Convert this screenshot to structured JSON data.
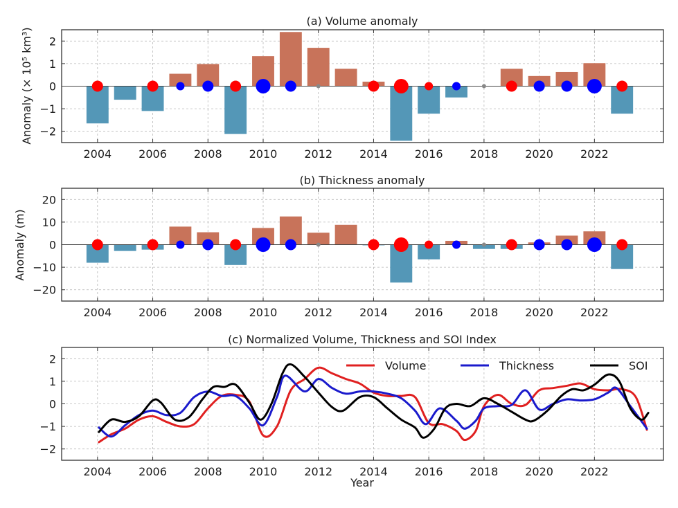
{
  "figure": {
    "panels": [
      {
        "title": "(a) Volume anomaly",
        "ylabel": "Anomaly (× 10⁵ km³)",
        "yticks": [
          "−2",
          "−1",
          "0",
          "1",
          "2"
        ]
      },
      {
        "title": "(b) Thickness anomaly",
        "ylabel": "Anomaly (m)",
        "yticks": [
          "−20",
          "−10",
          "0",
          "10",
          "20"
        ]
      },
      {
        "title": "(c) Normalized Volume, Thickness and SOI Index",
        "xlabel": "Year",
        "yticks": [
          "−2",
          "−1",
          "0",
          "1",
          "2"
        ]
      }
    ],
    "xticks": [
      "2004",
      "2006",
      "2008",
      "2010",
      "2012",
      "2014",
      "2016",
      "2018",
      "2020",
      "2022"
    ],
    "legend": [
      "Volume",
      "Thickness",
      "SOI"
    ]
  },
  "chart_data": [
    {
      "type": "bar",
      "title": "(a) Volume anomaly",
      "xlabel": "",
      "ylabel": "Anomaly (× 10^5 km^3)",
      "ylim": [
        -2.5,
        2.5
      ],
      "xlim": [
        2002.7,
        2024.5
      ],
      "yticks": [
        -2,
        -1,
        0,
        1,
        2
      ],
      "xticks": [
        2004,
        2006,
        2008,
        2010,
        2012,
        2014,
        2016,
        2018,
        2020,
        2022
      ],
      "grid": true,
      "categories": [
        2004,
        2005,
        2006,
        2007,
        2008,
        2009,
        2010,
        2011,
        2012,
        2013,
        2014,
        2015,
        2016,
        2017,
        2018,
        2019,
        2020,
        2021,
        2022,
        2023
      ],
      "values": [
        -1.65,
        -0.6,
        -1.1,
        0.55,
        0.98,
        -2.12,
        1.33,
        2.4,
        1.7,
        0.77,
        0.2,
        -2.42,
        -1.22,
        -0.5,
        0.0,
        0.77,
        0.45,
        0.63,
        1.02,
        -1.22
      ],
      "colors": {
        "positive": "#c8735a",
        "negative": "#5497b7"
      },
      "enso_markers": [
        {
          "year": 2004,
          "phase": "El Niño",
          "size": "medium"
        },
        {
          "year": 2006,
          "phase": "El Niño",
          "size": "medium"
        },
        {
          "year": 2007,
          "phase": "La Niña",
          "size": "small"
        },
        {
          "year": 2008,
          "phase": "La Niña",
          "size": "medium"
        },
        {
          "year": 2009,
          "phase": "El Niño",
          "size": "medium"
        },
        {
          "year": 2010,
          "phase": "La Niña",
          "size": "large"
        },
        {
          "year": 2011,
          "phase": "La Niña",
          "size": "medium"
        },
        {
          "year": 2012,
          "phase": "Neutral",
          "size": "tiny"
        },
        {
          "year": 2014,
          "phase": "El Niño",
          "size": "medium"
        },
        {
          "year": 2015,
          "phase": "El Niño",
          "size": "large"
        },
        {
          "year": 2016,
          "phase": "El Niño",
          "size": "small"
        },
        {
          "year": 2017,
          "phase": "La Niña",
          "size": "small"
        },
        {
          "year": 2018,
          "phase": "Neutral",
          "size": "tiny"
        },
        {
          "year": 2019,
          "phase": "El Niño",
          "size": "medium"
        },
        {
          "year": 2020,
          "phase": "La Niña",
          "size": "medium"
        },
        {
          "year": 2021,
          "phase": "La Niña",
          "size": "medium"
        },
        {
          "year": 2022,
          "phase": "La Niña",
          "size": "large"
        },
        {
          "year": 2023,
          "phase": "El Niño",
          "size": "medium"
        }
      ],
      "marker_colors": {
        "El Niño": "#ff0000",
        "La Niña": "#0000ff",
        "Neutral": "#888888"
      }
    },
    {
      "type": "bar",
      "title": "(b) Thickness anomaly",
      "xlabel": "",
      "ylabel": "Anomaly (m)",
      "ylim": [
        -25,
        25
      ],
      "xlim": [
        2002.7,
        2024.5
      ],
      "yticks": [
        -20,
        -10,
        0,
        10,
        20
      ],
      "xticks": [
        2004,
        2006,
        2008,
        2010,
        2012,
        2014,
        2016,
        2018,
        2020,
        2022
      ],
      "grid": true,
      "categories": [
        2004,
        2005,
        2006,
        2007,
        2008,
        2009,
        2010,
        2011,
        2012,
        2013,
        2014,
        2015,
        2016,
        2017,
        2018,
        2019,
        2020,
        2021,
        2022,
        2023
      ],
      "values": [
        -8.0,
        -2.8,
        -2.2,
        8.0,
        5.5,
        -9.0,
        7.4,
        12.5,
        5.3,
        8.8,
        -0.3,
        -16.8,
        -6.5,
        1.7,
        -1.9,
        -1.9,
        1.0,
        4.0,
        5.9,
        -10.8
      ],
      "colors": {
        "positive": "#c8735a",
        "negative": "#5497b7"
      },
      "enso_markers": [
        {
          "year": 2004,
          "phase": "El Niño",
          "size": "medium"
        },
        {
          "year": 2006,
          "phase": "El Niño",
          "size": "medium"
        },
        {
          "year": 2007,
          "phase": "La Niña",
          "size": "small"
        },
        {
          "year": 2008,
          "phase": "La Niña",
          "size": "medium"
        },
        {
          "year": 2009,
          "phase": "El Niño",
          "size": "medium"
        },
        {
          "year": 2010,
          "phase": "La Niña",
          "size": "large"
        },
        {
          "year": 2011,
          "phase": "La Niña",
          "size": "medium"
        },
        {
          "year": 2012,
          "phase": "Neutral",
          "size": "tiny"
        },
        {
          "year": 2014,
          "phase": "El Niño",
          "size": "medium"
        },
        {
          "year": 2015,
          "phase": "El Niño",
          "size": "large"
        },
        {
          "year": 2016,
          "phase": "El Niño",
          "size": "small"
        },
        {
          "year": 2017,
          "phase": "La Niña",
          "size": "small"
        },
        {
          "year": 2018,
          "phase": "Neutral",
          "size": "tiny"
        },
        {
          "year": 2019,
          "phase": "El Niño",
          "size": "medium"
        },
        {
          "year": 2020,
          "phase": "La Niña",
          "size": "medium"
        },
        {
          "year": 2021,
          "phase": "La Niña",
          "size": "medium"
        },
        {
          "year": 2022,
          "phase": "La Niña",
          "size": "large"
        },
        {
          "year": 2023,
          "phase": "El Niño",
          "size": "medium"
        }
      ],
      "marker_colors": {
        "El Niño": "#ff0000",
        "La Niña": "#0000ff",
        "Neutral": "#888888"
      }
    },
    {
      "type": "line",
      "title": "(c) Normalized Volume, Thickness and SOI Index",
      "xlabel": "Year",
      "ylabel": "",
      "ylim": [
        -2.5,
        2.5
      ],
      "xlim": [
        2002.7,
        2024.5
      ],
      "yticks": [
        -2,
        -1,
        0,
        1,
        2
      ],
      "xticks": [
        2004,
        2006,
        2008,
        2010,
        2012,
        2014,
        2016,
        2018,
        2020,
        2022
      ],
      "grid": true,
      "legend_position": "top-right",
      "series": [
        {
          "name": "Volume",
          "color": "#e02020",
          "x": [
            2004.05,
            2004.5,
            2005.0,
            2005.5,
            2006.0,
            2006.5,
            2007.0,
            2007.5,
            2008.0,
            2008.5,
            2009.0,
            2009.5,
            2010.0,
            2010.5,
            2011.0,
            2011.5,
            2012.0,
            2012.5,
            2013.0,
            2013.5,
            2014.0,
            2014.5,
            2015.0,
            2015.5,
            2016.0,
            2016.5,
            2017.0,
            2017.3,
            2017.7,
            2018.0,
            2018.5,
            2019.0,
            2019.5,
            2020.0,
            2020.5,
            2021.0,
            2021.5,
            2022.0,
            2022.5,
            2023.0,
            2023.5,
            2023.9
          ],
          "y": [
            -1.7,
            -1.35,
            -1.1,
            -0.7,
            -0.55,
            -0.8,
            -1.0,
            -0.9,
            -0.2,
            0.35,
            0.4,
            0.1,
            -1.4,
            -1.0,
            0.6,
            1.1,
            1.6,
            1.35,
            1.1,
            0.9,
            0.5,
            0.35,
            0.35,
            0.3,
            -0.85,
            -0.9,
            -1.2,
            -1.6,
            -1.2,
            -0.1,
            0.4,
            0.0,
            -0.05,
            0.6,
            0.7,
            0.8,
            0.9,
            0.65,
            0.6,
            0.65,
            0.3,
            -1.15
          ]
        },
        {
          "name": "Thickness",
          "color": "#1a1acc",
          "x": [
            2004.05,
            2004.5,
            2005.0,
            2005.5,
            2006.0,
            2006.5,
            2007.0,
            2007.5,
            2008.0,
            2008.5,
            2009.0,
            2009.5,
            2010.0,
            2010.5,
            2010.8,
            2011.5,
            2012.0,
            2012.5,
            2013.0,
            2013.5,
            2014.0,
            2014.5,
            2015.0,
            2015.5,
            2015.9,
            2016.4,
            2017.0,
            2017.3,
            2017.7,
            2018.0,
            2018.5,
            2019.0,
            2019.5,
            2020.0,
            2020.5,
            2021.0,
            2021.5,
            2022.0,
            2022.5,
            2022.8,
            2023.3,
            2023.9
          ],
          "y": [
            -1.05,
            -1.45,
            -0.95,
            -0.5,
            -0.3,
            -0.5,
            -0.4,
            0.3,
            0.55,
            0.35,
            0.35,
            -0.2,
            -0.95,
            0.3,
            1.25,
            0.55,
            1.1,
            0.7,
            0.45,
            0.55,
            0.55,
            0.45,
            0.25,
            -0.3,
            -0.9,
            -0.2,
            -0.75,
            -1.1,
            -0.75,
            -0.2,
            -0.1,
            -0.05,
            0.6,
            -0.25,
            0.0,
            0.2,
            0.15,
            0.2,
            0.5,
            0.7,
            -0.1,
            -1.1
          ]
        },
        {
          "name": "SOI",
          "color": "#000000",
          "x": [
            2004.05,
            2004.5,
            2005.0,
            2005.5,
            2006.0,
            2006.3,
            2006.8,
            2007.3,
            2007.8,
            2008.2,
            2008.6,
            2009.0,
            2009.5,
            2009.9,
            2010.3,
            2010.7,
            2011.0,
            2011.5,
            2012.0,
            2012.5,
            2012.9,
            2013.5,
            2014.0,
            2014.5,
            2015.0,
            2015.5,
            2015.8,
            2016.2,
            2016.6,
            2017.0,
            2017.5,
            2018.0,
            2018.5,
            2019.0,
            2019.5,
            2019.8,
            2020.3,
            2020.8,
            2021.2,
            2021.6,
            2022.0,
            2022.5,
            2022.9,
            2023.3,
            2023.7,
            2023.95
          ],
          "y": [
            -1.25,
            -0.7,
            -0.8,
            -0.55,
            0.15,
            0.05,
            -0.7,
            -0.6,
            0.2,
            0.75,
            0.75,
            0.85,
            0.05,
            -0.7,
            0.0,
            1.35,
            1.75,
            1.2,
            0.5,
            -0.15,
            -0.3,
            0.3,
            0.3,
            -0.2,
            -0.7,
            -1.05,
            -1.5,
            -1.1,
            -0.2,
            0.0,
            -0.1,
            0.25,
            0.0,
            -0.35,
            -0.7,
            -0.75,
            -0.3,
            0.35,
            0.65,
            0.6,
            0.85,
            1.3,
            1.0,
            -0.2,
            -0.7,
            -0.4
          ]
        }
      ]
    }
  ]
}
